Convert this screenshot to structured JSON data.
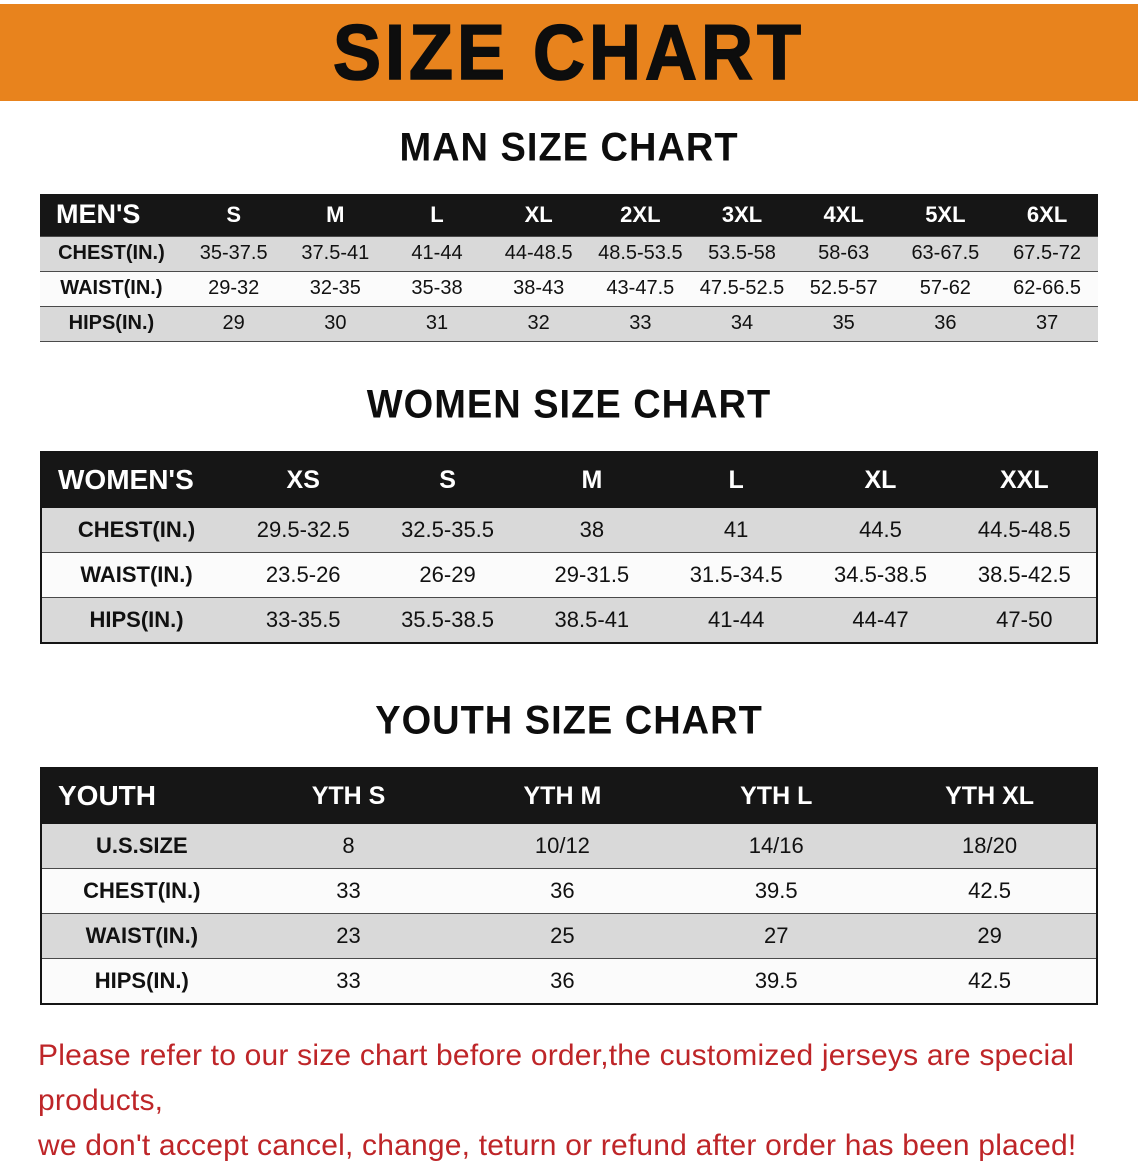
{
  "banner": {
    "title": "SIZE CHART"
  },
  "colors": {
    "banner_bg": "#E8831D",
    "table_header_bg": "#161616",
    "row_stripe": "#D9D9D9",
    "disclaimer_text": "#BE2528"
  },
  "men": {
    "heading": "MAN SIZE CHART",
    "table": {
      "header": [
        "MEN'S",
        "S",
        "M",
        "L",
        "XL",
        "2XL",
        "3XL",
        "4XL",
        "5XL",
        "6XL"
      ],
      "rows": [
        [
          "CHEST(IN.)",
          "35-37.5",
          "37.5-41",
          "41-44",
          "44-48.5",
          "48.5-53.5",
          "53.5-58",
          "58-63",
          "63-67.5",
          "67.5-72"
        ],
        [
          "WAIST(IN.)",
          "29-32",
          "32-35",
          "35-38",
          "38-43",
          "43-47.5",
          "47.5-52.5",
          "52.5-57",
          "57-62",
          "62-66.5"
        ],
        [
          "HIPS(IN.)",
          "29",
          "30",
          "31",
          "32",
          "33",
          "34",
          "35",
          "36",
          "37"
        ]
      ]
    }
  },
  "women": {
    "heading": "WOMEN SIZE CHART",
    "table": {
      "header": [
        "WOMEN'S",
        "XS",
        "S",
        "M",
        "L",
        "XL",
        "XXL"
      ],
      "rows": [
        [
          "CHEST(IN.)",
          "29.5-32.5",
          "32.5-35.5",
          "38",
          "41",
          "44.5",
          "44.5-48.5"
        ],
        [
          "WAIST(IN.)",
          "23.5-26",
          "26-29",
          "29-31.5",
          "31.5-34.5",
          "34.5-38.5",
          "38.5-42.5"
        ],
        [
          "HIPS(IN.)",
          "33-35.5",
          "35.5-38.5",
          "38.5-41",
          "41-44",
          "44-47",
          "47-50"
        ]
      ]
    }
  },
  "youth": {
    "heading": "YOUTH SIZE CHART",
    "table": {
      "header": [
        "YOUTH",
        "YTH S",
        "YTH M",
        "YTH L",
        "YTH XL"
      ],
      "rows": [
        [
          "U.S.SIZE",
          "8",
          "10/12",
          "14/16",
          "18/20"
        ],
        [
          "CHEST(IN.)",
          "33",
          "36",
          "39.5",
          "42.5"
        ],
        [
          "WAIST(IN.)",
          "23",
          "25",
          "27",
          "29"
        ],
        [
          "HIPS(IN.)",
          "33",
          "36",
          "39.5",
          "42.5"
        ]
      ]
    }
  },
  "disclaimer": {
    "line1": "Please refer to our size chart before order,the customized jerseys are special products,",
    "line2": "we don't accept cancel, change, teturn or refund after order has been placed!"
  }
}
